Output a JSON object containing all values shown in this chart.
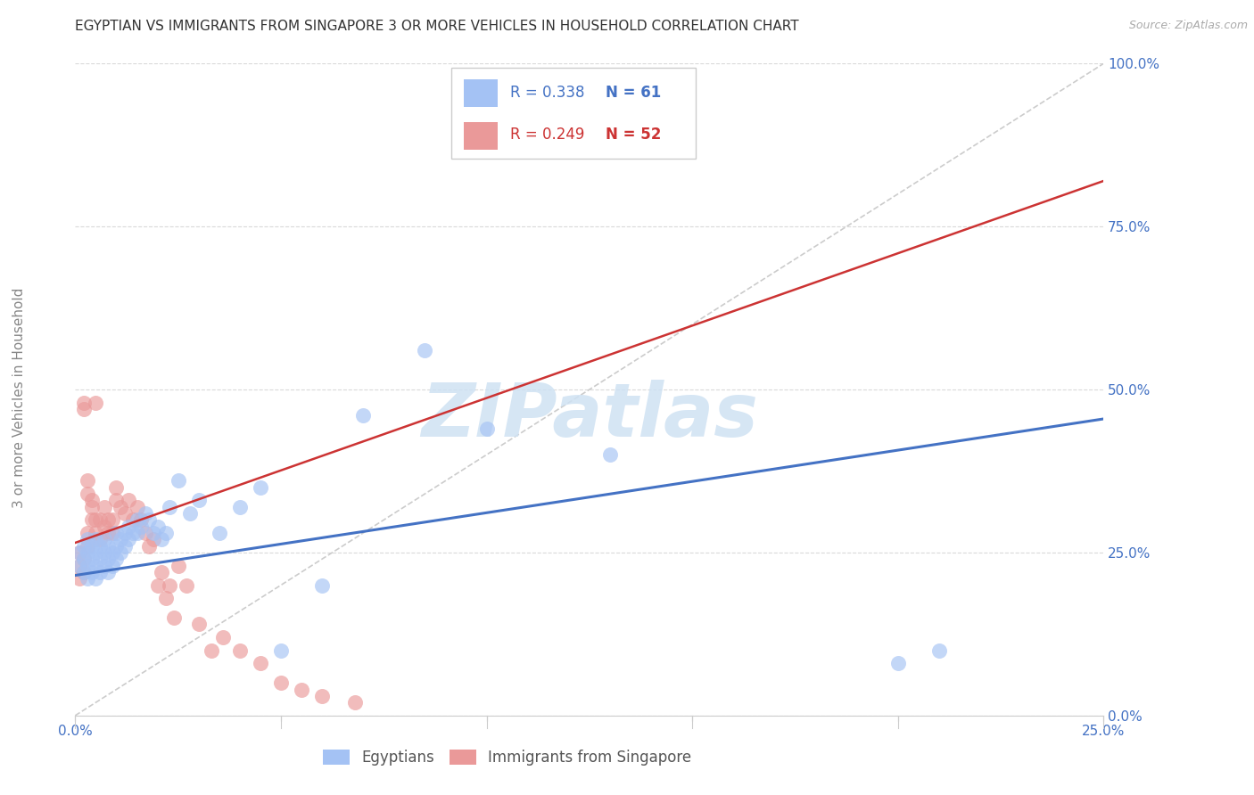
{
  "title": "EGYPTIAN VS IMMIGRANTS FROM SINGAPORE 3 OR MORE VEHICLES IN HOUSEHOLD CORRELATION CHART",
  "source": "Source: ZipAtlas.com",
  "ylabel": "3 or more Vehicles in Household",
  "xlim": [
    0.0,
    0.25
  ],
  "ylim": [
    0.0,
    1.0
  ],
  "xticks": [
    0.0,
    0.05,
    0.1,
    0.15,
    0.2,
    0.25
  ],
  "yticks": [
    0.0,
    0.25,
    0.5,
    0.75,
    1.0
  ],
  "xticklabels_show": [
    "0.0%",
    "",
    "",
    "",
    "",
    "25.0%"
  ],
  "yticklabels_show": [
    "0.0%",
    "25.0%",
    "50.0%",
    "75.0%",
    "100.0%"
  ],
  "blue_color": "#a4c2f4",
  "pink_color": "#ea9999",
  "blue_line_color": "#4472c4",
  "pink_line_color": "#cc3333",
  "R_blue": 0.338,
  "N_blue": 61,
  "R_pink": 0.249,
  "N_pink": 52,
  "legend_label_blue": "Egyptians",
  "legend_label_pink": "Immigrants from Singapore",
  "blue_x": [
    0.001,
    0.001,
    0.002,
    0.002,
    0.002,
    0.003,
    0.003,
    0.003,
    0.003,
    0.004,
    0.004,
    0.004,
    0.005,
    0.005,
    0.005,
    0.005,
    0.006,
    0.006,
    0.006,
    0.007,
    0.007,
    0.007,
    0.008,
    0.008,
    0.008,
    0.009,
    0.009,
    0.01,
    0.01,
    0.01,
    0.011,
    0.011,
    0.012,
    0.012,
    0.013,
    0.013,
    0.014,
    0.015,
    0.015,
    0.016,
    0.017,
    0.018,
    0.019,
    0.02,
    0.021,
    0.022,
    0.023,
    0.025,
    0.028,
    0.03,
    0.035,
    0.04,
    0.045,
    0.05,
    0.06,
    0.07,
    0.085,
    0.1,
    0.13,
    0.2,
    0.21
  ],
  "blue_y": [
    0.23,
    0.25,
    0.22,
    0.24,
    0.26,
    0.21,
    0.23,
    0.25,
    0.27,
    0.22,
    0.24,
    0.26,
    0.21,
    0.23,
    0.25,
    0.27,
    0.22,
    0.24,
    0.26,
    0.23,
    0.25,
    0.27,
    0.22,
    0.24,
    0.26,
    0.23,
    0.25,
    0.24,
    0.26,
    0.28,
    0.25,
    0.27,
    0.26,
    0.28,
    0.27,
    0.29,
    0.28,
    0.3,
    0.28,
    0.29,
    0.31,
    0.3,
    0.28,
    0.29,
    0.27,
    0.28,
    0.32,
    0.36,
    0.31,
    0.33,
    0.28,
    0.32,
    0.35,
    0.1,
    0.2,
    0.46,
    0.56,
    0.44,
    0.4,
    0.08,
    0.1
  ],
  "pink_x": [
    0.001,
    0.001,
    0.001,
    0.002,
    0.002,
    0.002,
    0.002,
    0.003,
    0.003,
    0.003,
    0.003,
    0.004,
    0.004,
    0.004,
    0.005,
    0.005,
    0.005,
    0.006,
    0.006,
    0.007,
    0.007,
    0.008,
    0.008,
    0.009,
    0.009,
    0.01,
    0.01,
    0.011,
    0.012,
    0.013,
    0.014,
    0.015,
    0.016,
    0.017,
    0.018,
    0.019,
    0.02,
    0.021,
    0.022,
    0.023,
    0.024,
    0.025,
    0.027,
    0.03,
    0.033,
    0.036,
    0.04,
    0.045,
    0.05,
    0.055,
    0.06,
    0.068
  ],
  "pink_y": [
    0.21,
    0.23,
    0.25,
    0.48,
    0.47,
    0.22,
    0.24,
    0.34,
    0.36,
    0.26,
    0.28,
    0.32,
    0.33,
    0.3,
    0.28,
    0.3,
    0.48,
    0.27,
    0.3,
    0.29,
    0.32,
    0.28,
    0.3,
    0.28,
    0.3,
    0.33,
    0.35,
    0.32,
    0.31,
    0.33,
    0.3,
    0.32,
    0.3,
    0.28,
    0.26,
    0.27,
    0.2,
    0.22,
    0.18,
    0.2,
    0.15,
    0.23,
    0.2,
    0.14,
    0.1,
    0.12,
    0.1,
    0.08,
    0.05,
    0.04,
    0.03,
    0.02
  ],
  "watermark": "ZIPatlas",
  "grid_color": "#d9d9d9",
  "background_color": "#ffffff",
  "title_fontsize": 11,
  "axis_tick_color": "#4472c4",
  "ylabel_color": "#888888"
}
